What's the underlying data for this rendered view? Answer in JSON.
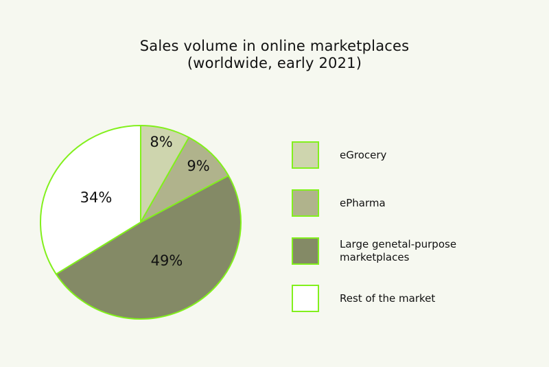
{
  "chart_data": {
    "type": "pie",
    "title_lines": [
      "Sales volume in online marketplaces",
      "(worldwide, early 2021)"
    ],
    "slices": [
      {
        "label": "eGrocery",
        "value": 8,
        "display": "8%",
        "color": "#ced5ae"
      },
      {
        "label": "ePharma",
        "value": 9,
        "display": "9%",
        "color": "#b0b38c"
      },
      {
        "label": "Large genetal-purpose marketplaces",
        "value": 49,
        "display": "49%",
        "color": "#848a66"
      },
      {
        "label": "Rest of the market",
        "value": 34,
        "display": "34%",
        "color": "#ffffff"
      }
    ],
    "legend_lines": [
      [
        "eGrocery"
      ],
      [
        "ePharma"
      ],
      [
        "Large genetal-purpose",
        "marketplaces"
      ],
      [
        "Rest of the market"
      ]
    ],
    "legend_placement": "right",
    "stroke_color": "#82f01c",
    "background": "#f6f8f0"
  }
}
